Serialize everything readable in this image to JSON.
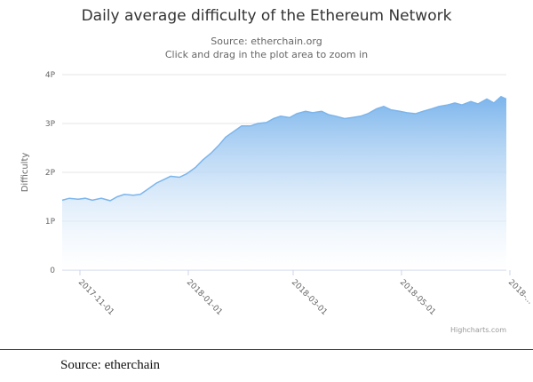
{
  "chart_data": {
    "type": "area",
    "title": "Daily average difficulty of the Ethereum Network",
    "subtitle_lines": [
      "Source: etherchain.org",
      "Click and drag in the plot area to zoom in"
    ],
    "ylabel": "Difficulty",
    "xlabel": "",
    "ylim": [
      0,
      4
    ],
    "y_ticks": [
      {
        "value": 0,
        "label": "0"
      },
      {
        "value": 1,
        "label": "1P"
      },
      {
        "value": 2,
        "label": "2P"
      },
      {
        "value": 3,
        "label": "3P"
      },
      {
        "value": 4,
        "label": "4P"
      }
    ],
    "x_range": [
      "2017-10-22",
      "2018-06-29"
    ],
    "x_ticks": [
      "2017-11-01",
      "2018-01-01",
      "2018-03-01",
      "2018-05-01",
      "2018-07-01"
    ],
    "x_tick_labels": [
      "2017-11-01",
      "2018-01-01",
      "2018-03-01",
      "2018-05-01",
      "2018-..."
    ],
    "grid": true,
    "legend": "none",
    "series": [
      {
        "x": [
          "2017-10-22",
          "2017-10-26",
          "2017-10-31",
          "2017-11-04",
          "2017-11-08",
          "2017-11-13",
          "2017-11-18",
          "2017-11-22",
          "2017-11-26",
          "2017-12-01",
          "2017-12-05",
          "2017-12-09",
          "2017-12-14",
          "2017-12-18",
          "2017-12-22",
          "2017-12-27",
          "2017-12-31",
          "2018-01-05",
          "2018-01-09",
          "2018-01-14",
          "2018-01-18",
          "2018-01-22",
          "2018-01-27",
          "2018-01-31",
          "2018-02-05",
          "2018-02-09",
          "2018-02-14",
          "2018-02-18",
          "2018-02-22",
          "2018-02-27",
          "2018-03-03",
          "2018-03-08",
          "2018-03-12",
          "2018-03-17",
          "2018-03-21",
          "2018-03-25",
          "2018-03-30",
          "2018-04-03",
          "2018-04-08",
          "2018-04-12",
          "2018-04-17",
          "2018-04-21",
          "2018-04-25",
          "2018-04-30",
          "2018-05-04",
          "2018-05-09",
          "2018-05-13",
          "2018-05-18",
          "2018-05-22",
          "2018-05-27",
          "2018-05-31",
          "2018-06-04",
          "2018-06-09",
          "2018-06-13",
          "2018-06-18",
          "2018-06-22",
          "2018-06-26",
          "2018-06-29"
        ],
        "values": [
          1.43,
          1.47,
          1.45,
          1.47,
          1.43,
          1.47,
          1.42,
          1.5,
          1.55,
          1.53,
          1.55,
          1.65,
          1.78,
          1.85,
          1.92,
          1.9,
          1.97,
          2.1,
          2.25,
          2.4,
          2.55,
          2.72,
          2.85,
          2.95,
          2.95,
          3.0,
          3.02,
          3.1,
          3.15,
          3.12,
          3.2,
          3.25,
          3.22,
          3.25,
          3.18,
          3.15,
          3.1,
          3.12,
          3.15,
          3.2,
          3.3,
          3.35,
          3.28,
          3.25,
          3.22,
          3.2,
          3.25,
          3.3,
          3.35,
          3.38,
          3.42,
          3.38,
          3.45,
          3.4,
          3.5,
          3.42,
          3.55,
          3.5
        ]
      }
    ]
  },
  "credit": "Highcharts.com",
  "caption": "Source: etherchain",
  "colors": {
    "area_top": "#7cb5ec",
    "area_bottom": "#ffffff",
    "line": "#7cb5ec",
    "grid": "#e6e6e6",
    "axis_text": "#666666"
  }
}
